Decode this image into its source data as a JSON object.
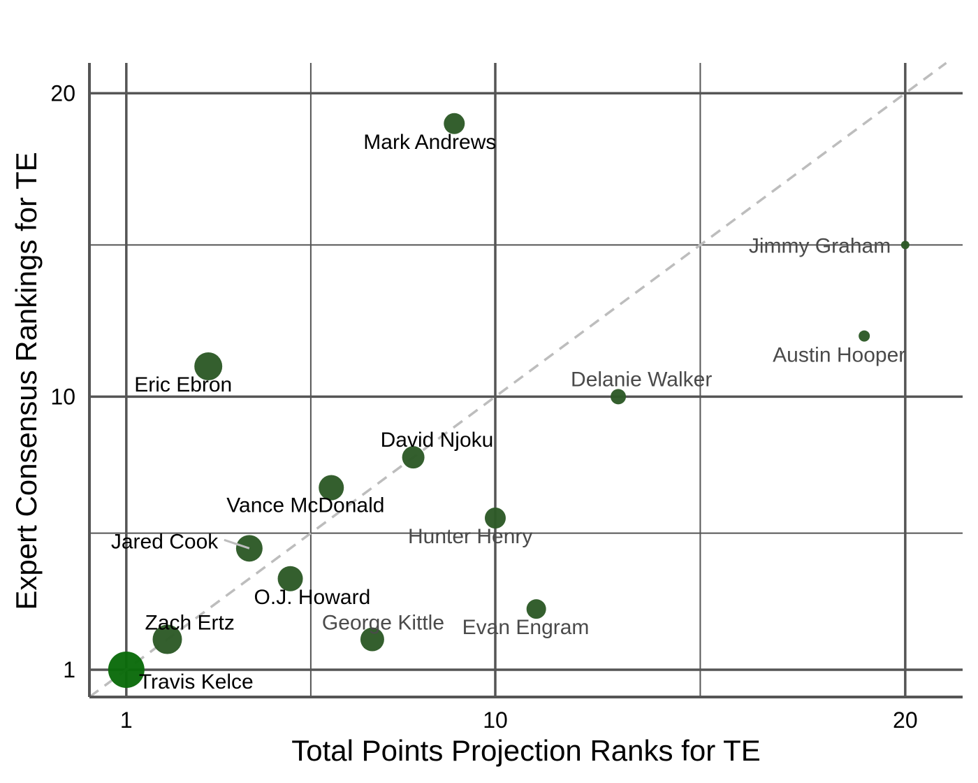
{
  "chart_data": {
    "type": "scatter",
    "xlabel": "Total Points Projection Ranks for TE",
    "ylabel": "Expert Consensus Rankings for TE",
    "xlim": [
      0.1,
      21.4
    ],
    "ylim": [
      0.1,
      21.0
    ],
    "x_ticks": [
      1,
      10,
      20
    ],
    "y_ticks": [
      1,
      10,
      20
    ],
    "x_minor_ticks": [
      5.5,
      15
    ],
    "y_minor_ticks": [
      5.5,
      15
    ],
    "grid": true,
    "reference_line": "y = x (dashed)",
    "colors": {
      "point": "#2d5a27",
      "point_top": "#0b6b0b",
      "ref_line": "#bdbdbd",
      "grid": "#555555"
    },
    "points": [
      {
        "name": "Travis Kelce",
        "x": 1,
        "y": 1,
        "size": 26,
        "label_dark": true
      },
      {
        "name": "Zach Ertz",
        "x": 2,
        "y": 2,
        "size": 21,
        "label_dark": true
      },
      {
        "name": "Eric Ebron",
        "x": 3,
        "y": 11,
        "size": 20,
        "label_dark": true
      },
      {
        "name": "Jared Cook",
        "x": 4,
        "y": 5,
        "size": 19,
        "label_dark": true
      },
      {
        "name": "O.J. Howard",
        "x": 5,
        "y": 4,
        "size": 18,
        "label_dark": true
      },
      {
        "name": "Vance McDonald",
        "x": 6,
        "y": 7,
        "size": 18,
        "label_dark": true
      },
      {
        "name": "George Kittle",
        "x": 7,
        "y": 2,
        "size": 17,
        "label_dark": false
      },
      {
        "name": "David Njoku",
        "x": 8,
        "y": 8,
        "size": 16,
        "label_dark": true
      },
      {
        "name": "Mark Andrews",
        "x": 9,
        "y": 19,
        "size": 15,
        "label_dark": true
      },
      {
        "name": "Hunter Henry",
        "x": 10,
        "y": 6,
        "size": 15,
        "label_dark": false
      },
      {
        "name": "Evan Engram",
        "x": 11,
        "y": 3,
        "size": 14,
        "label_dark": false
      },
      {
        "name": "Delanie Walker",
        "x": 13,
        "y": 10,
        "size": 11,
        "label_dark": false
      },
      {
        "name": "Austin Hooper",
        "x": 19,
        "y": 12,
        "size": 8,
        "label_dark": false
      },
      {
        "name": "Jimmy Graham",
        "x": 20,
        "y": 15,
        "size": 6,
        "label_dark": false
      }
    ]
  }
}
